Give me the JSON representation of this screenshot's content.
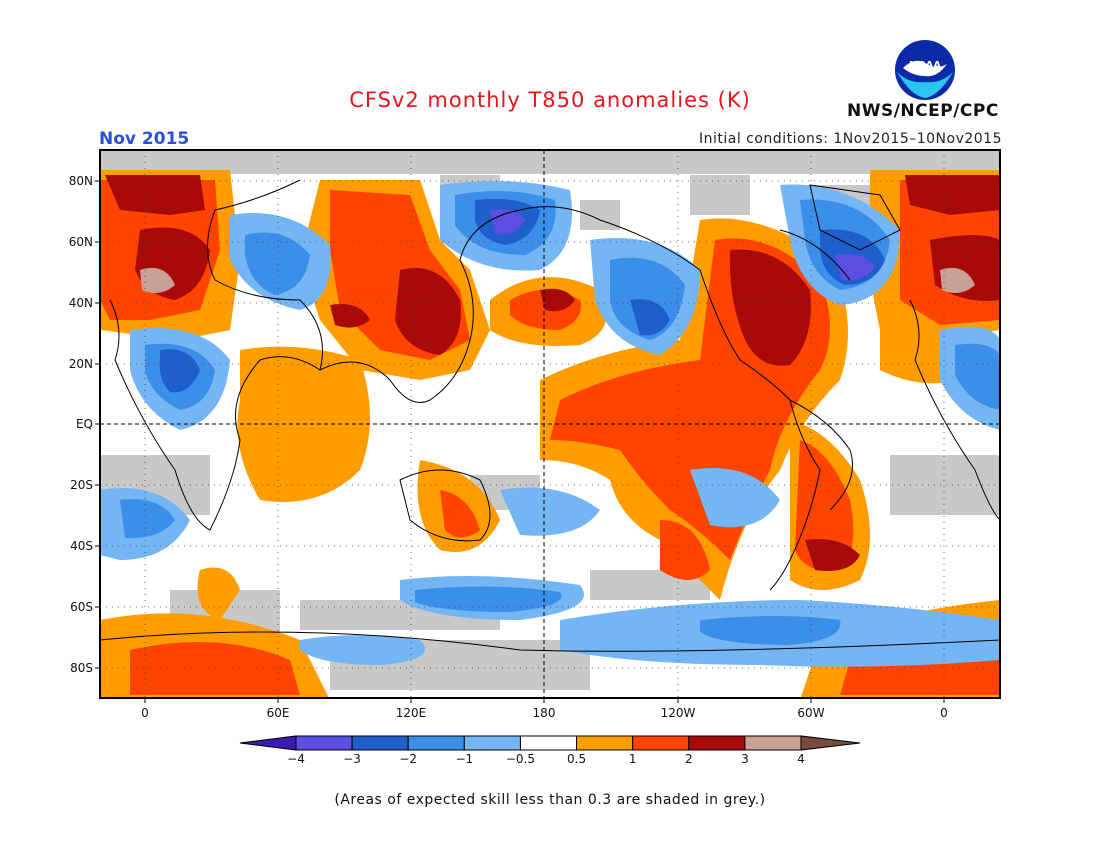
{
  "title": "CFSv2 monthly T850 anomalies (K)",
  "month": "Nov 2015",
  "initial_conditions": "Initial conditions: 1Nov2015–10Nov2015",
  "org": "NWS/NCEP/CPC",
  "logo_text": "NOAA",
  "note": "(Areas of expected skill less than 0.3 are shaded in grey.)",
  "map": {
    "lat_labels": [
      "80N",
      "60N",
      "40N",
      "20N",
      "EQ",
      "20S",
      "40S",
      "60S",
      "80S"
    ],
    "lon_labels": [
      "0",
      "60E",
      "120E",
      "180",
      "120W",
      "60W",
      "0"
    ],
    "background": "#ffffff",
    "low_skill_color": "#c8c8c8"
  },
  "colorbar": {
    "labels": [
      "−4",
      "−3",
      "−2",
      "−1",
      "−0.5",
      "0.5",
      "1",
      "2",
      "3",
      "4"
    ],
    "colors": [
      "#3a1cb0",
      "#5b4ee0",
      "#1f5fcc",
      "#3b8fe8",
      "#74b6f4",
      "#ffffff",
      "#ff9d00",
      "#ff4400",
      "#a80a0a",
      "#c8a096",
      "#7a4a3c"
    ]
  }
}
